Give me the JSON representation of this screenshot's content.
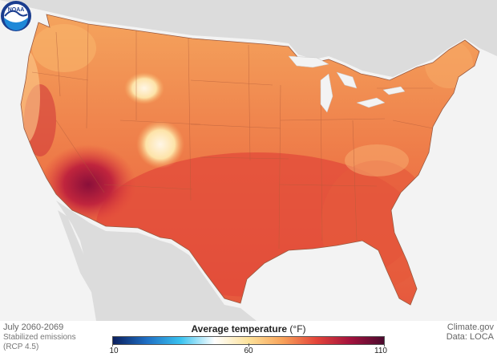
{
  "map": {
    "title": "Average temperature",
    "unit": "(°F)",
    "period": "July 2060-2069",
    "scenario": "Stabilized emissions (RCP 4.5)",
    "credit": "Climate.gov",
    "source": "Data: LOCA",
    "logo_text": "NOAA",
    "legend": {
      "min": 10,
      "mid": 60,
      "max": 110,
      "tick_labels": [
        "10",
        "60",
        "110"
      ],
      "colors": [
        "#0b1f5e",
        "#1f6fc4",
        "#3ac3f0",
        "#ffffff",
        "#fde29a",
        "#f8a35a",
        "#e4453a",
        "#a3123d",
        "#4b0a2e"
      ]
    },
    "background_color": "#f3f3f3",
    "land_outside_color": "#dcdcdc"
  }
}
